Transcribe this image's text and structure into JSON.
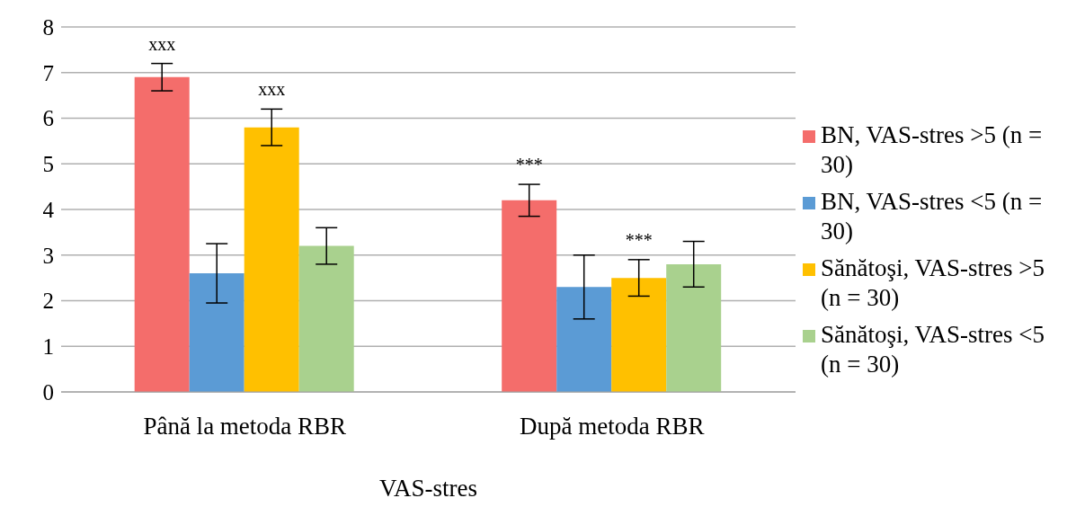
{
  "chart_data": {
    "type": "bar",
    "xlabel": "VAS-stres",
    "categories": [
      "Până la metoda RBR",
      "După metoda RBR"
    ],
    "series": [
      {
        "name": "BN, VAS-stres >5 (n = 30)",
        "color": "#f46d6b",
        "values": [
          6.9,
          4.2
        ],
        "errors": [
          0.3,
          0.35
        ],
        "value_labels": [
          "xxx",
          "***"
        ]
      },
      {
        "name": "BN, VAS-stres <5 (n = 30)",
        "color": "#5b9bd5",
        "values": [
          2.6,
          2.3
        ],
        "errors": [
          0.65,
          0.7
        ]
      },
      {
        "name": "Sănătoşi, VAS-stres >5 (n = 30)",
        "color": "#ffc000",
        "values": [
          5.8,
          2.5
        ],
        "errors": [
          0.4,
          0.4
        ],
        "value_labels": [
          "xxx",
          "***"
        ]
      },
      {
        "name": "Sănătoşi, VAS-stres <5 (n = 30)",
        "color": "#a9d18e",
        "values": [
          3.2,
          2.8
        ],
        "errors": [
          0.4,
          0.5
        ]
      }
    ],
    "ylim": [
      0,
      8
    ],
    "yticks": [
      0,
      1,
      2,
      3,
      4,
      5,
      6,
      7,
      8
    ],
    "grid": "y",
    "legend": "right"
  }
}
